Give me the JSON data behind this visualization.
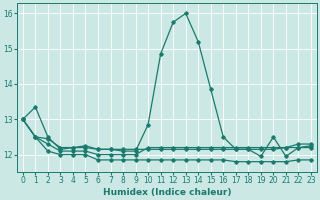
{
  "title": "",
  "xlabel": "Humidex (Indice chaleur)",
  "xlim": [
    -0.5,
    23.5
  ],
  "ylim": [
    11.5,
    16.3
  ],
  "yticks": [
    12,
    13,
    14,
    15,
    16
  ],
  "xticks": [
    0,
    1,
    2,
    3,
    4,
    5,
    6,
    7,
    8,
    9,
    10,
    11,
    12,
    13,
    14,
    15,
    16,
    17,
    18,
    19,
    20,
    21,
    22,
    23
  ],
  "color": "#1a7a6e",
  "bg_color": "#cce8e4",
  "grid_color": "#ffffff",
  "series": [
    {
      "x": [
        0,
        1,
        2,
        3,
        4,
        5,
        6,
        7,
        8,
        9,
        10,
        11,
        12,
        13,
        14,
        15,
        16,
        17,
        18,
        19,
        20,
        21,
        22,
        23
      ],
      "y": [
        13.0,
        13.35,
        12.5,
        12.15,
        12.2,
        12.25,
        12.15,
        12.15,
        12.1,
        12.1,
        12.85,
        14.85,
        15.75,
        16.0,
        15.2,
        13.85,
        12.5,
        12.15,
        12.15,
        11.95,
        12.5,
        11.95,
        12.2,
        12.25
      ]
    },
    {
      "x": [
        0,
        1,
        2,
        3,
        4,
        5,
        6,
        7,
        8,
        9,
        10,
        11,
        12,
        13,
        14,
        15,
        16,
        17,
        18,
        19,
        20,
        21,
        22,
        23
      ],
      "y": [
        13.0,
        12.5,
        12.45,
        12.2,
        12.2,
        12.2,
        12.15,
        12.15,
        12.15,
        12.15,
        12.15,
        12.15,
        12.15,
        12.15,
        12.15,
        12.15,
        12.15,
        12.15,
        12.15,
        12.15,
        12.15,
        12.2,
        12.2,
        12.2
      ]
    },
    {
      "x": [
        0,
        1,
        2,
        3,
        4,
        5,
        6,
        7,
        8,
        9,
        10,
        11,
        12,
        13,
        14,
        15,
        16,
        17,
        18,
        19,
        20,
        21,
        22,
        23
      ],
      "y": [
        13.0,
        12.5,
        12.1,
        12.0,
        12.0,
        12.0,
        11.85,
        11.85,
        11.85,
        11.85,
        11.85,
        11.85,
        11.85,
        11.85,
        11.85,
        11.85,
        11.85,
        11.8,
        11.8,
        11.8,
        11.8,
        11.8,
        11.85,
        11.85
      ]
    },
    {
      "x": [
        0,
        1,
        2,
        3,
        4,
        5,
        6,
        7,
        8,
        9,
        10,
        11,
        12,
        13,
        14,
        15,
        16,
        17,
        18,
        19,
        20,
        21,
        22,
        23
      ],
      "y": [
        13.0,
        12.5,
        12.3,
        12.1,
        12.1,
        12.1,
        12.0,
        12.0,
        12.0,
        12.0,
        12.2,
        12.2,
        12.2,
        12.2,
        12.2,
        12.2,
        12.2,
        12.2,
        12.2,
        12.2,
        12.2,
        12.2,
        12.3,
        12.3
      ]
    }
  ],
  "marker": "D",
  "markersize": 1.8,
  "linewidth": 0.9
}
